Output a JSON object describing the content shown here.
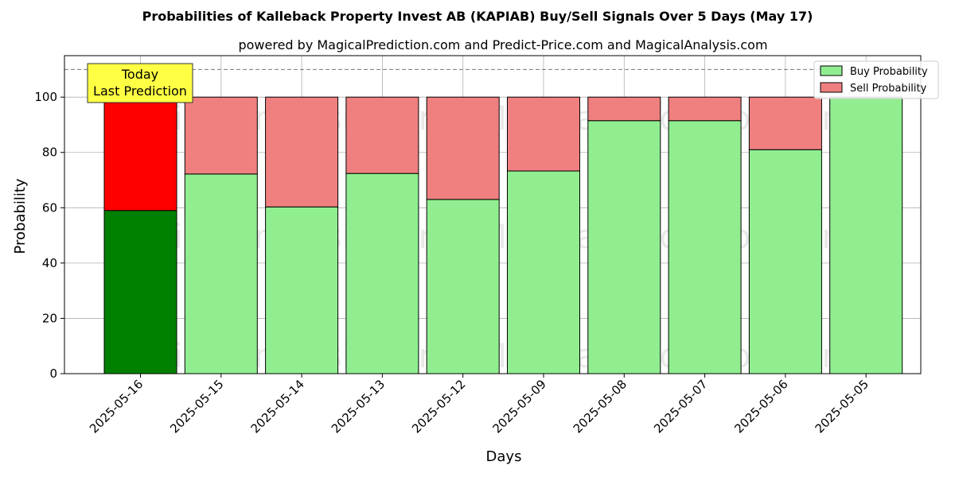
{
  "chart_data": {
    "type": "bar",
    "stacked": true,
    "title": "Probabilities of Kalleback Property Invest AB (KAPIAB) Buy/Sell Signals Over 5 Days (May 17)",
    "subtitle": "powered by MagicalPrediction.com and Predict-Price.com and MagicalAnalysis.com",
    "xlabel": "Days",
    "ylabel": "Probability",
    "ylim": [
      0,
      115
    ],
    "yticks": [
      0,
      20,
      40,
      60,
      80,
      100
    ],
    "grid": true,
    "reference_line": 110,
    "categories": [
      "2025-05-16",
      "2025-05-15",
      "2025-05-14",
      "2025-05-13",
      "2025-05-12",
      "2025-05-09",
      "2025-05-08",
      "2025-05-07",
      "2025-05-06",
      "2025-05-05"
    ],
    "series": [
      {
        "name": "Buy Probability",
        "values": [
          59,
          72.2,
          60.3,
          72.4,
          63,
          73.3,
          91.5,
          91.5,
          81,
          100
        ]
      },
      {
        "name": "Sell Probability",
        "values": [
          41,
          27.8,
          39.7,
          27.6,
          37,
          26.7,
          8.5,
          8.5,
          19,
          0
        ]
      }
    ],
    "colors": {
      "buy": "#90ee90",
      "sell": "#f08080",
      "today_buy": "#008000",
      "today_sell": "#ff0000",
      "annotation_bg": "#ffff44"
    },
    "legend_position": "top-right",
    "annotation": {
      "line1": "Today",
      "line2": "Last Prediction",
      "category": "2025-05-16"
    },
    "watermarks": [
      "MagicalAnalysis.com",
      "MagicalPrediction.com"
    ]
  }
}
